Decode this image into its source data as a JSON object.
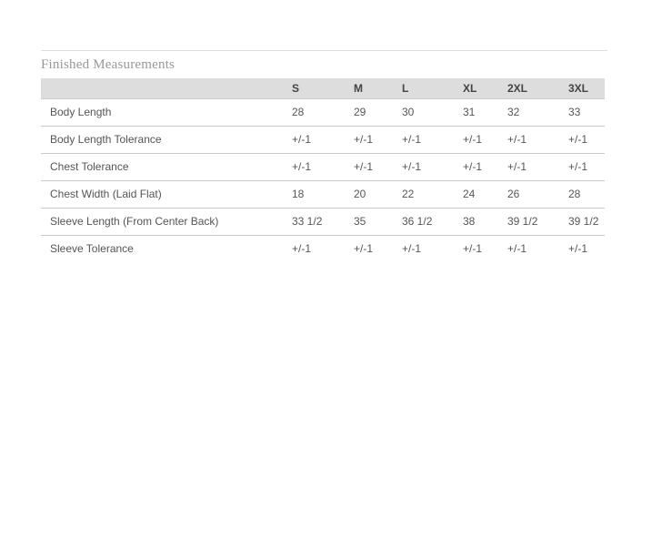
{
  "section": {
    "title": "Finished Measurements"
  },
  "table": {
    "columns": [
      "S",
      "M",
      "L",
      "XL",
      "2XL",
      "3XL"
    ],
    "rows": [
      {
        "label": "Body Length",
        "values": [
          "28",
          "29",
          "30",
          "31",
          "32",
          "33"
        ]
      },
      {
        "label": "Body Length Tolerance",
        "values": [
          "+/-1",
          "+/-1",
          "+/-1",
          "+/-1",
          "+/-1",
          "+/-1"
        ]
      },
      {
        "label": "Chest Tolerance",
        "values": [
          "+/-1",
          "+/-1",
          "+/-1",
          "+/-1",
          "+/-1",
          "+/-1"
        ]
      },
      {
        "label": "Chest Width (Laid Flat)",
        "values": [
          "18",
          "20",
          "22",
          "24",
          "26",
          "28"
        ]
      },
      {
        "label": "Sleeve Length (From Center Back)",
        "values": [
          "33 1/2",
          "35",
          "36 1/2",
          "38",
          "39 1/2",
          "39 1/2"
        ]
      },
      {
        "label": "Sleeve Tolerance",
        "values": [
          "+/-1",
          "+/-1",
          "+/-1",
          "+/-1",
          "+/-1",
          "+/-1"
        ]
      }
    ]
  },
  "colors": {
    "page_background": "#ffffff",
    "top_divider": "#dedede",
    "title_text": "#999999",
    "header_background": "#dddddd",
    "header_text": "#444444",
    "body_text": "#555555",
    "row_divider": "#c9c9c9"
  }
}
